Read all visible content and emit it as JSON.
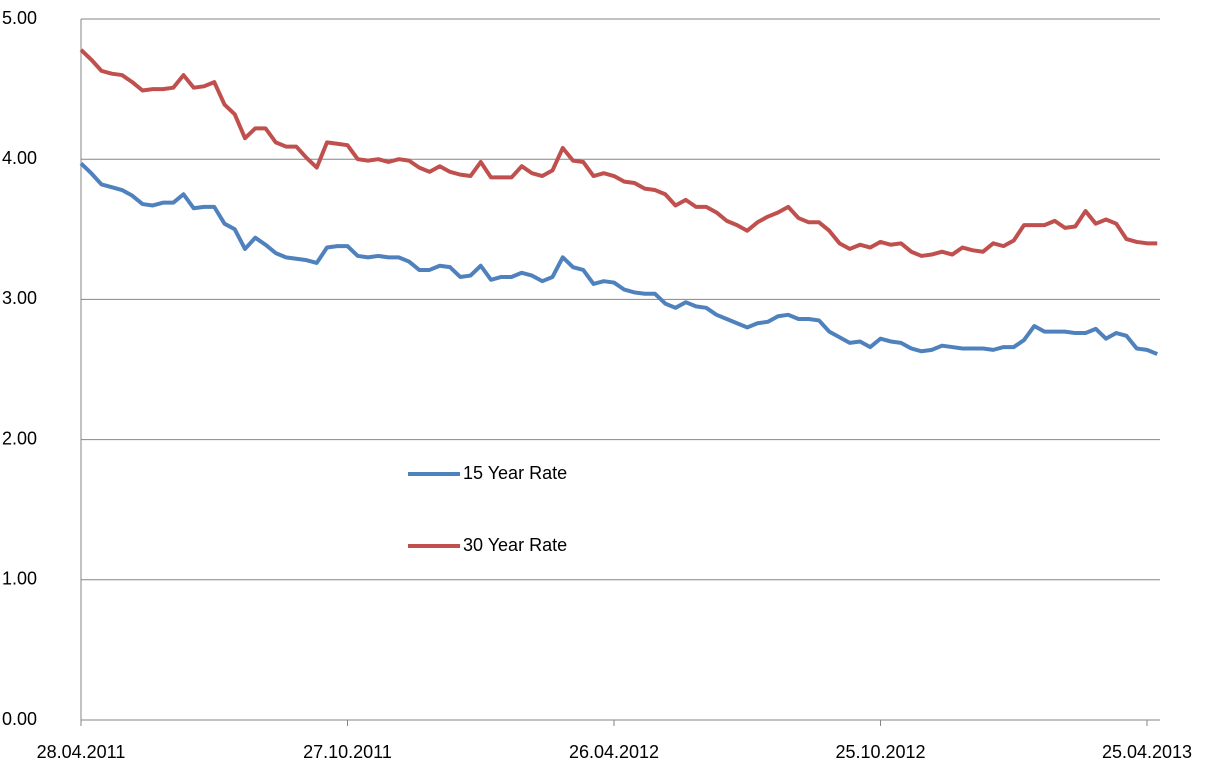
{
  "chart_data": {
    "type": "line",
    "categories": [
      "28.04.2011",
      null,
      null,
      null,
      null,
      null,
      null,
      null,
      null,
      null,
      null,
      null,
      null,
      null,
      null,
      null,
      null,
      null,
      null,
      null,
      null,
      null,
      null,
      null,
      null,
      null,
      "27.10.2011",
      null,
      null,
      null,
      null,
      null,
      null,
      null,
      null,
      null,
      null,
      null,
      null,
      null,
      null,
      null,
      null,
      null,
      null,
      null,
      null,
      null,
      null,
      null,
      null,
      null,
      "26.04.2012",
      null,
      null,
      null,
      null,
      null,
      null,
      null,
      null,
      null,
      null,
      null,
      null,
      null,
      null,
      null,
      null,
      null,
      null,
      null,
      null,
      null,
      null,
      null,
      null,
      null,
      "25.10.2012",
      null,
      null,
      null,
      null,
      null,
      null,
      null,
      null,
      null,
      null,
      null,
      null,
      null,
      null,
      null,
      null,
      null,
      null,
      null,
      null,
      null,
      null,
      null,
      null,
      null,
      "25.04.2013",
      null
    ],
    "series": [
      {
        "name": "15 Year Rate",
        "color": "#4f81bd",
        "values": [
          3.97,
          3.9,
          3.82,
          3.8,
          3.78,
          3.74,
          3.68,
          3.67,
          3.69,
          3.69,
          3.75,
          3.65,
          3.66,
          3.66,
          3.54,
          3.5,
          3.36,
          3.44,
          3.39,
          3.33,
          3.3,
          3.29,
          3.28,
          3.26,
          3.37,
          3.38,
          3.38,
          3.31,
          3.3,
          3.31,
          3.3,
          3.3,
          3.27,
          3.21,
          3.21,
          3.24,
          3.23,
          3.16,
          3.17,
          3.24,
          3.14,
          3.16,
          3.16,
          3.19,
          3.17,
          3.13,
          3.16,
          3.3,
          3.23,
          3.21,
          3.11,
          3.13,
          3.12,
          3.07,
          3.05,
          3.04,
          3.04,
          2.97,
          2.94,
          2.98,
          2.95,
          2.94,
          2.89,
          2.86,
          2.83,
          2.8,
          2.83,
          2.84,
          2.88,
          2.89,
          2.86,
          2.86,
          2.85,
          2.77,
          2.73,
          2.69,
          2.7,
          2.66,
          2.72,
          2.7,
          2.69,
          2.65,
          2.63,
          2.64,
          2.67,
          2.66,
          2.65,
          2.65,
          2.65,
          2.64,
          2.66,
          2.66,
          2.71,
          2.81,
          2.77,
          2.77,
          2.77,
          2.76,
          2.76,
          2.79,
          2.72,
          2.76,
          2.74,
          2.65,
          2.64,
          2.61
        ]
      },
      {
        "name": "30 Year Rate",
        "color": "#c0504d",
        "values": [
          4.78,
          4.71,
          4.63,
          4.61,
          4.6,
          4.55,
          4.49,
          4.5,
          4.5,
          4.51,
          4.6,
          4.51,
          4.52,
          4.55,
          4.39,
          4.32,
          4.15,
          4.22,
          4.22,
          4.12,
          4.09,
          4.09,
          4.01,
          3.94,
          4.12,
          4.11,
          4.1,
          4.0,
          3.99,
          4.0,
          3.98,
          4.0,
          3.99,
          3.94,
          3.91,
          3.95,
          3.91,
          3.89,
          3.88,
          3.98,
          3.87,
          3.87,
          3.87,
          3.95,
          3.9,
          3.88,
          3.92,
          4.08,
          3.99,
          3.98,
          3.88,
          3.9,
          3.88,
          3.84,
          3.83,
          3.79,
          3.78,
          3.75,
          3.67,
          3.71,
          3.66,
          3.66,
          3.62,
          3.56,
          3.53,
          3.49,
          3.55,
          3.59,
          3.62,
          3.66,
          3.58,
          3.55,
          3.55,
          3.49,
          3.4,
          3.36,
          3.39,
          3.37,
          3.41,
          3.39,
          3.4,
          3.34,
          3.31,
          3.32,
          3.34,
          3.32,
          3.37,
          3.35,
          3.34,
          3.4,
          3.38,
          3.42,
          3.53,
          3.53,
          3.53,
          3.56,
          3.51,
          3.52,
          3.63,
          3.54,
          3.57,
          3.54,
          3.43,
          3.41,
          3.4,
          3.4
        ]
      }
    ],
    "ylim": [
      0,
      5
    ],
    "yticks": [
      {
        "value": 0,
        "label": "0.00"
      },
      {
        "value": 1,
        "label": "1.00"
      },
      {
        "value": 2,
        "label": "2.00"
      },
      {
        "value": 3,
        "label": "3.00"
      },
      {
        "value": 4,
        "label": "4.00"
      },
      {
        "value": 5,
        "label": "5.00"
      }
    ],
    "grid": true,
    "legend": "center"
  }
}
